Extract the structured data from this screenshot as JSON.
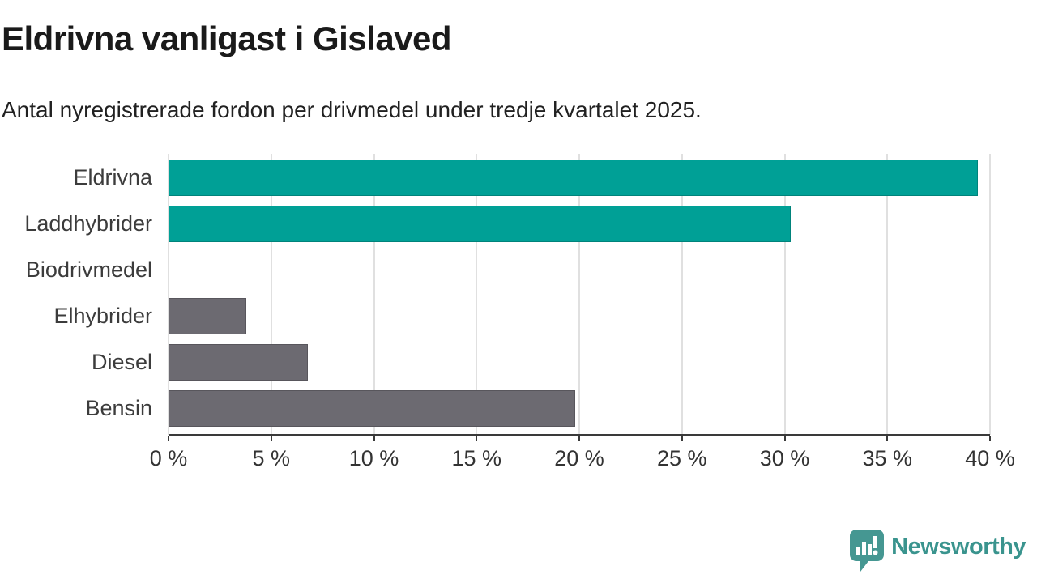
{
  "chart_data": {
    "type": "bar",
    "orientation": "horizontal",
    "title": "Eldrivna vanligast i Gislaved",
    "subtitle": "Antal nyregistrerade fordon per drivmedel under tredje kvartalet 2025.",
    "categories": [
      "Eldrivna",
      "Laddhybrider",
      "Biodrivmedel",
      "Elhybrider",
      "Diesel",
      "Bensin"
    ],
    "values": [
      39.4,
      30.3,
      0,
      3.8,
      6.8,
      19.8
    ],
    "unit": "%",
    "xlim": [
      0,
      40
    ],
    "x_ticks": [
      0,
      5,
      10,
      15,
      20,
      25,
      30,
      35,
      40
    ],
    "x_tick_labels": [
      "0 %",
      "5 %",
      "10 %",
      "15 %",
      "20 %",
      "25 %",
      "30 %",
      "35 %",
      "40 %"
    ],
    "grid": "vertical-only",
    "legend": "none",
    "highlight_color": "#00a096",
    "default_color": "#6c6a71",
    "bar_colors": [
      "#00a096",
      "#00a096",
      "#6c6a71",
      "#6c6a71",
      "#6c6a71",
      "#6c6a71"
    ],
    "gridline_color": "#e0e0e0",
    "axis_color": "#3a3a3a"
  },
  "footer": {
    "brand": "Newsworthy",
    "brand_color": "#3a948e",
    "icon_color": "#459792",
    "icon": "newsworthy-speech-bubble-barchart-icon"
  }
}
